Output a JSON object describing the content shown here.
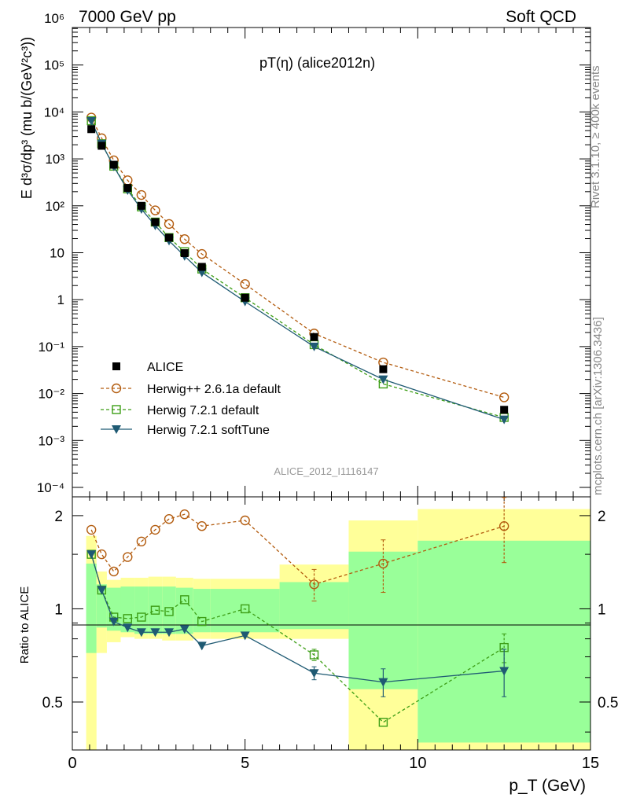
{
  "header": {
    "left": "7000 GeV pp",
    "right": "Soft QCD"
  },
  "side": {
    "rivet": "Rivet 3.1.10, ≥ 400k events",
    "mcplots": "mcplots.cern.ch [arXiv:1306.3436]"
  },
  "plot": {
    "title": "pT(η) (alice2012n)",
    "analysis": "ALICE_2012_I1116147",
    "ylabel": "E d³σ/dp³ (mu b/(GeV²c³))",
    "ratio_ylabel": "Ratio to ALICE",
    "xlabel": "p_T (GeV)",
    "yticks_top": [
      "10⁻⁴",
      "10⁻³",
      "10⁻²",
      "10⁻¹",
      "1",
      "10",
      "10²",
      "10³",
      "10⁴",
      "10⁵",
      "10⁶"
    ],
    "yticks_ratio": [
      "0.5",
      "1",
      "2"
    ],
    "xticks": [
      "0",
      "5",
      "10",
      "15"
    ]
  },
  "chart_data": {
    "type": "scatter",
    "title": "pT(η) (alice2012n)",
    "xlabel": "p_T (GeV)",
    "ylabel": "E d³σ/dp³ (mu b/(GeV²c³))",
    "xlim": [
      0,
      15
    ],
    "ylim": [
      0.0001,
      1000000
    ],
    "yscale": "log",
    "ratio_ylim": [
      0.35,
      2.3
    ],
    "ratio_yscale": "log",
    "legend_position": "bottom-left",
    "x": [
      0.55,
      0.85,
      1.2,
      1.6,
      2.0,
      2.4,
      2.8,
      3.25,
      3.75,
      5.0,
      7.0,
      9.0,
      12.5
    ],
    "series": [
      {
        "name": "ALICE",
        "color": "#000000",
        "marker": "filled-square",
        "line": "none",
        "values": [
          4300,
          1900,
          750,
          240,
          100,
          45,
          21,
          9.8,
          5.0,
          1.1,
          0.16,
          0.033,
          0.0045
        ]
      },
      {
        "name": "Herwig++ 2.6.1a default",
        "color": "#b35c0f",
        "marker": "open-circle",
        "line": "dashed",
        "values": [
          7600,
          2750,
          930,
          350,
          170,
          80,
          41,
          19.5,
          9.4,
          2.15,
          0.19,
          0.046,
          0.0083
        ],
        "ratio": [
          1.8,
          1.5,
          1.32,
          1.47,
          1.65,
          1.8,
          1.95,
          2.02,
          1.85,
          1.93,
          1.2,
          1.4,
          1.85
        ],
        "ratio_err": [
          0,
          0,
          0,
          0,
          0,
          0,
          0,
          0,
          0,
          0,
          0.14,
          0.27,
          0.44
        ]
      },
      {
        "name": "Herwig 7.2.1 default",
        "color": "#3d9e16",
        "marker": "open-square",
        "line": "dashed",
        "values": [
          6500,
          2100,
          700,
          230,
          95,
          45,
          21,
          10.5,
          4.5,
          1.1,
          0.11,
          0.016,
          0.0031
        ],
        "ratio": [
          1.5,
          1.15,
          0.94,
          0.93,
          0.94,
          0.99,
          0.98,
          1.07,
          0.91,
          1.0,
          0.71,
          0.43,
          0.75
        ],
        "ratio_err": [
          0,
          0,
          0,
          0,
          0,
          0,
          0,
          0,
          0,
          0,
          0.03,
          0,
          0.08
        ]
      },
      {
        "name": "Herwig 7.2.1 softTune",
        "color": "#1f5a73",
        "marker": "filled-triangle-down",
        "line": "solid",
        "values": [
          6400,
          2100,
          690,
          215,
          85,
          38,
          18,
          8.5,
          3.8,
          0.91,
          0.1,
          0.02,
          0.0028
        ],
        "ratio": [
          1.5,
          1.15,
          0.91,
          0.87,
          0.84,
          0.84,
          0.84,
          0.86,
          0.76,
          0.82,
          0.62,
          0.58,
          0.63
        ],
        "ratio_err": [
          0,
          0,
          0,
          0,
          0,
          0,
          0,
          0,
          0,
          0,
          0.03,
          0.06,
          0.11
        ]
      }
    ],
    "ratio_bands": {
      "bin_edges": [
        0.4,
        0.7,
        1.0,
        1.4,
        1.8,
        2.2,
        2.6,
        3.0,
        3.5,
        4.0,
        6.0,
        8.0,
        10.0,
        15.0
      ],
      "green_lo": [
        0.72,
        0.87,
        0.85,
        0.84,
        0.83,
        0.83,
        0.83,
        0.83,
        0.84,
        0.84,
        0.86,
        0.55,
        0.37
      ],
      "green_hi": [
        1.4,
        1.2,
        1.17,
        1.18,
        1.18,
        1.18,
        1.18,
        1.17,
        1.16,
        1.16,
        1.22,
        1.53,
        1.66
      ],
      "yellow_lo": [
        0.35,
        0.72,
        0.78,
        0.81,
        0.8,
        0.8,
        0.79,
        0.79,
        0.8,
        0.8,
        0.8,
        0.35,
        0.35
      ],
      "yellow_hi": [
        1.72,
        1.32,
        1.24,
        1.26,
        1.26,
        1.27,
        1.27,
        1.26,
        1.25,
        1.25,
        1.39,
        1.93,
        2.1
      ]
    }
  }
}
